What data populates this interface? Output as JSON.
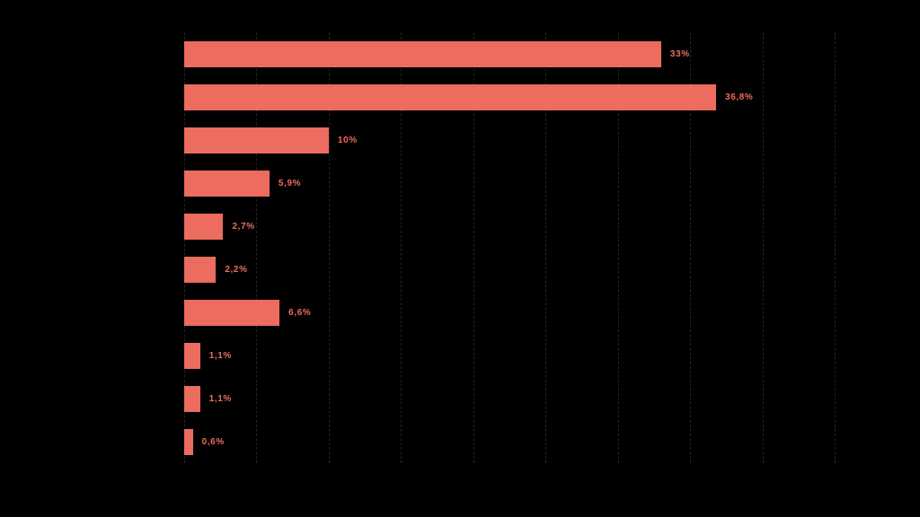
{
  "page": {
    "background_color": "#000000"
  },
  "chart_data": {
    "type": "bar",
    "orientation": "horizontal",
    "values": [
      33,
      36.8,
      10,
      5.9,
      2.7,
      2.2,
      6.6,
      1.1,
      1.1,
      0.6
    ],
    "value_labels": [
      "33%",
      "36,8%",
      "10%",
      "5,9%",
      "2,7%",
      "2,2%",
      "6,6%",
      "1,1%",
      "1,1%",
      "0,6%"
    ],
    "xlim": [
      0,
      45
    ],
    "grid_interval": 5,
    "grid_on": true,
    "grid_style": "dashed",
    "legend_position": "none",
    "bar_color": "#ec6c5f",
    "value_label_color": "#ec6c5f",
    "background_color": "#000000"
  }
}
